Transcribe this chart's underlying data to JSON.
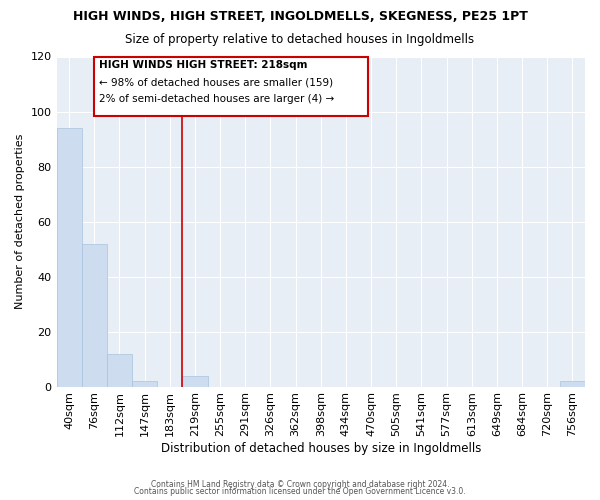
{
  "title": "HIGH WINDS, HIGH STREET, INGOLDMELLS, SKEGNESS, PE25 1PT",
  "subtitle": "Size of property relative to detached houses in Ingoldmells",
  "xlabel": "Distribution of detached houses by size in Ingoldmells",
  "ylabel": "Number of detached properties",
  "bar_color": "#cddcee",
  "bar_edge_color": "#a8c4de",
  "vline_color": "#cc0000",
  "annotation_title": "HIGH WINDS HIGH STREET: 218sqm",
  "annotation_line1": "← 98% of detached houses are smaller (159)",
  "annotation_line2": "2% of semi-detached houses are larger (4) →",
  "annotation_box_color": "#cc0000",
  "categories": [
    "40sqm",
    "76sqm",
    "112sqm",
    "147sqm",
    "183sqm",
    "219sqm",
    "255sqm",
    "291sqm",
    "326sqm",
    "362sqm",
    "398sqm",
    "434sqm",
    "470sqm",
    "505sqm",
    "541sqm",
    "577sqm",
    "613sqm",
    "649sqm",
    "684sqm",
    "720sqm",
    "756sqm"
  ],
  "values": [
    94,
    52,
    12,
    2,
    0,
    4,
    0,
    0,
    0,
    0,
    0,
    0,
    0,
    0,
    0,
    0,
    0,
    0,
    0,
    0,
    2
  ],
  "ylim": [
    0,
    120
  ],
  "background_color": "#e8eef5",
  "grid_color": "#ffffff",
  "footer1": "Contains HM Land Registry data © Crown copyright and database right 2024.",
  "footer2": "Contains public sector information licensed under the Open Government Licence v3.0.",
  "vline_idx": 5
}
